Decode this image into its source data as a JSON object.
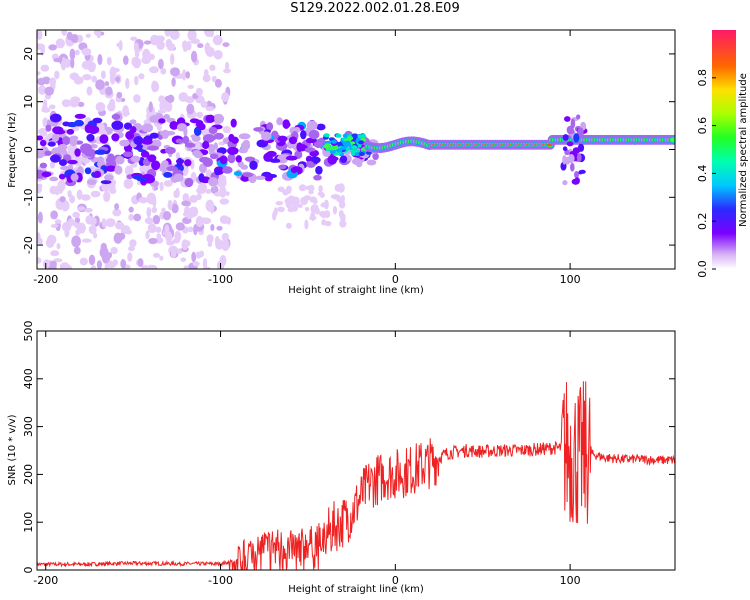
{
  "title": "S129.2022.002.01.28.E09",
  "colors": {
    "snr_line": "#ee2222",
    "axis": "#000000"
  },
  "chart_data": [
    {
      "type": "heatmap",
      "id": "spectrogram",
      "xlabel": "Height of straight line (km)",
      "ylabel": "Frequency (Hz)",
      "xlim": [
        -205,
        160
      ],
      "ylim": [
        -25,
        25
      ],
      "xticks": [
        -200,
        -100,
        0,
        100
      ],
      "yticks": [
        20,
        10,
        0,
        -10,
        -20
      ],
      "colorbar": {
        "label": "Normalized spectral amplitude",
        "range": [
          0.0,
          1.0
        ],
        "ticks": [
          0.0,
          0.2,
          0.4,
          0.6,
          0.8
        ]
      }
    },
    {
      "type": "line",
      "id": "snr",
      "xlabel": "Height of straight line (km)",
      "ylabel": "SNR (10 * v/v)",
      "xlim": [
        -205,
        160
      ],
      "ylim": [
        0,
        500
      ],
      "xticks": [
        -200,
        -100,
        0,
        100
      ],
      "yticks": [
        0,
        100,
        200,
        300,
        400,
        500
      ],
      "series": [
        {
          "x": [
            -205,
            -180,
            -150,
            -120,
            -100,
            -90,
            -85,
            -80,
            -70,
            -60,
            -50,
            -40,
            -35,
            -30,
            -25,
            -20,
            -15,
            -10,
            -5,
            0,
            10,
            20,
            30,
            40,
            50,
            60,
            70,
            80,
            90,
            95,
            100,
            104,
            106,
            108,
            110,
            115,
            120,
            130,
            140,
            150,
            160
          ],
          "y": [
            12,
            12,
            14,
            13,
            13,
            20,
            35,
            50,
            55,
            50,
            55,
            70,
            90,
            100,
            120,
            150,
            180,
            190,
            200,
            200,
            210,
            225,
            245,
            250,
            248,
            250,
            250,
            252,
            255,
            255,
            250,
            240,
            230,
            240,
            245,
            240,
            235,
            232,
            232,
            230,
            230
          ]
        }
      ]
    }
  ]
}
